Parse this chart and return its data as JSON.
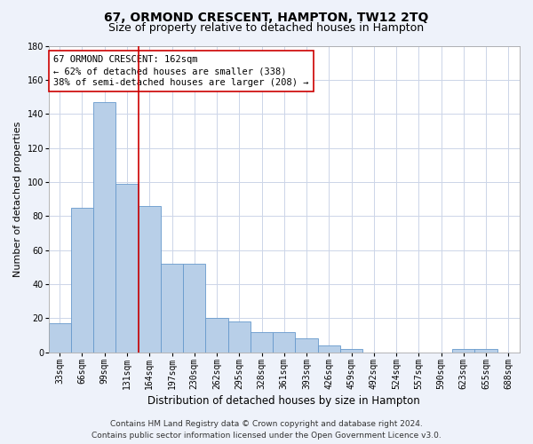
{
  "title": "67, ORMOND CRESCENT, HAMPTON, TW12 2TQ",
  "subtitle": "Size of property relative to detached houses in Hampton",
  "xlabel": "Distribution of detached houses by size in Hampton",
  "ylabel": "Number of detached properties",
  "categories": [
    "33sqm",
    "66sqm",
    "99sqm",
    "131sqm",
    "164sqm",
    "197sqm",
    "230sqm",
    "262sqm",
    "295sqm",
    "328sqm",
    "361sqm",
    "393sqm",
    "426sqm",
    "459sqm",
    "492sqm",
    "524sqm",
    "557sqm",
    "590sqm",
    "623sqm",
    "655sqm",
    "688sqm"
  ],
  "values": [
    17,
    85,
    147,
    99,
    86,
    52,
    52,
    20,
    18,
    12,
    12,
    8,
    4,
    2,
    0,
    0,
    0,
    0,
    2,
    2,
    0
  ],
  "bar_color": "#b8cfe8",
  "bar_edge_color": "#6699cc",
  "vline_color": "#cc0000",
  "annotation_line1": "67 ORMOND CRESCENT: 162sqm",
  "annotation_line2": "← 62% of detached houses are smaller (338)",
  "annotation_line3": "38% of semi-detached houses are larger (208) →",
  "annotation_box_color": "#ffffff",
  "annotation_box_edge_color": "#cc0000",
  "ylim": [
    0,
    180
  ],
  "yticks": [
    0,
    20,
    40,
    60,
    80,
    100,
    120,
    140,
    160,
    180
  ],
  "footer_line1": "Contains HM Land Registry data © Crown copyright and database right 2024.",
  "footer_line2": "Contains public sector information licensed under the Open Government Licence v3.0.",
  "bg_color": "#eef2fa",
  "plot_bg_color": "#ffffff",
  "grid_color": "#ccd5e8",
  "title_fontsize": 10,
  "subtitle_fontsize": 9,
  "tick_fontsize": 7,
  "ylabel_fontsize": 8,
  "xlabel_fontsize": 8.5,
  "footer_fontsize": 6.5,
  "annotation_fontsize": 7.5
}
